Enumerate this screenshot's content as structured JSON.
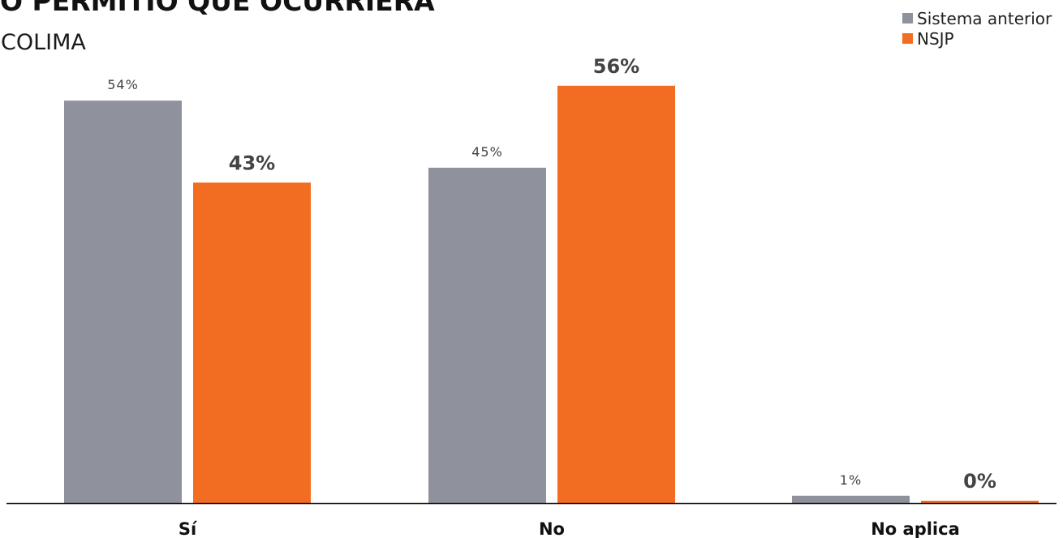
{
  "chart_data": {
    "type": "bar",
    "title": "O PERMITIÓ QUE OCURRIERA",
    "subtitle": "COLIMA",
    "categories": [
      "Sí",
      "No",
      "No aplica"
    ],
    "series": [
      {
        "name": "Sistema anterior",
        "values": [
          54,
          45,
          1
        ],
        "labels": [
          "54%",
          "45%",
          "1%"
        ],
        "color": "#8f929d"
      },
      {
        "name": "NSJP",
        "values": [
          43,
          56,
          0
        ],
        "labels": [
          "43%",
          "56%",
          "0%"
        ],
        "color": "#f26c22"
      }
    ],
    "ylim": [
      0,
      100
    ],
    "grid": false,
    "legend_position": "top-right"
  }
}
